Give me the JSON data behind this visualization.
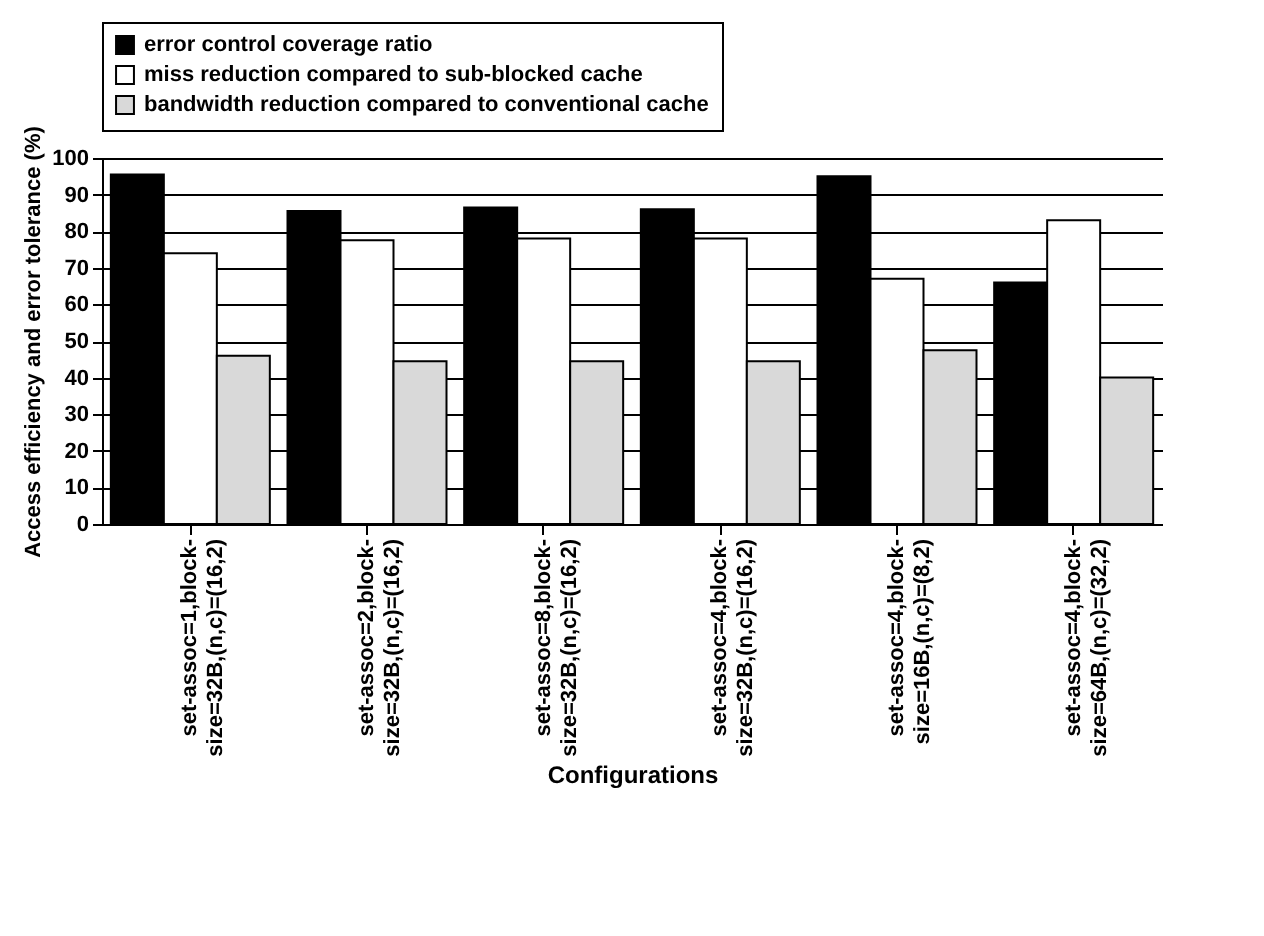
{
  "chart_data": {
    "type": "bar",
    "xlabel": "Configurations",
    "ylabel": "Access efficiency and error tolerance (%)",
    "categories": [
      "set-assoc=1,block-size=32B,(n,c)=(16,2)",
      "set-assoc=2,block-size=32B,(n,c)=(16,2)",
      "set-assoc=8,block-size=32B,(n,c)=(16,2)",
      "set-assoc=4,block-size=32B,(n,c)=(16,2)",
      "set-assoc=4,block-size=16B,(n,c)=(8,2)",
      "set-assoc=4,block-size=64B,(n,c)=(32,2)"
    ],
    "series": [
      {
        "name": "error control coverage ratio",
        "color": "#000000",
        "values": [
          95.5,
          85.5,
          86.5,
          86,
          95,
          66
        ]
      },
      {
        "name": "miss reduction compared to sub-blocked cache",
        "color": "#ffffff",
        "values": [
          74,
          77.5,
          78,
          78,
          67,
          83
        ]
      },
      {
        "name": "bandwidth reduction compared to conventional cache",
        "color": "#d9d9d9",
        "values": [
          46,
          44.5,
          44.5,
          44.5,
          47.5,
          40
        ]
      }
    ],
    "ylim": [
      0,
      100
    ],
    "yticks": [
      0,
      10,
      20,
      30,
      40,
      50,
      60,
      70,
      80,
      90,
      100
    ],
    "grid": "y",
    "legend": "top"
  }
}
